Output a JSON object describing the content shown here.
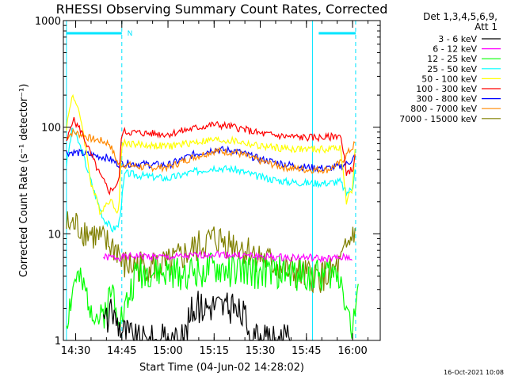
{
  "chart_data": {
    "type": "line",
    "title": "RHESSI Observing Summary Count Rates, Corrected",
    "xlabel": "Start Time (04-Jun-02 14:28:02)",
    "ylabel": "Corrected Count Rate (s⁻¹ detector⁻¹)",
    "yscale": "log",
    "ylim": [
      1,
      1000
    ],
    "xlim": [
      "14:26",
      "16:09"
    ],
    "x_ticks": [
      "14:30",
      "14:45",
      "15:00",
      "15:15",
      "15:30",
      "15:45",
      "16:00"
    ],
    "y_ticks": [
      "1",
      "10",
      "100",
      "1000"
    ],
    "legend_header": [
      "Det 1,3,4,5,6,9,",
      "Att 1"
    ],
    "legend_position": "right",
    "footer_date": "16-Oct-2021 10:08",
    "markers": {
      "night_bars": [
        [
          "14:27",
          "14:45"
        ],
        [
          "15:49",
          "16:01"
        ]
      ],
      "vertical_lines_solid": [
        "14:27",
        "15:47"
      ],
      "vertical_lines_dashed": [
        "14:45",
        "16:01"
      ],
      "saa_label": "N",
      "saa_label_time": "14:46"
    },
    "series": [
      {
        "name": "3 - 6 keV",
        "color": "#000000",
        "x": [
          "14:39",
          "14:42",
          "14:45",
          "14:50",
          "14:55",
          "14:58",
          "15:05",
          "15:08",
          "15:15",
          "15:20",
          "15:25",
          "15:28",
          "15:35",
          "15:40"
        ],
        "values": [
          1.5,
          1.8,
          1.3,
          1.0,
          1.0,
          1.0,
          1.0,
          2.0,
          2.2,
          2.0,
          1.7,
          1.0,
          1.0,
          1.0
        ]
      },
      {
        "name": "6 - 12 keV",
        "color": "#ff00ff",
        "x": [
          "14:39",
          "14:42",
          "14:45",
          "14:50",
          "15:00",
          "15:08",
          "15:15",
          "15:22",
          "15:28",
          "15:35",
          "15:40",
          "15:45",
          "15:50",
          "15:55",
          "15:58",
          "16:00"
        ],
        "values": [
          6.0,
          6.0,
          6.0,
          6.2,
          6.0,
          6.2,
          6.5,
          6.3,
          6.2,
          6.0,
          6.0,
          6.0,
          5.8,
          5.9,
          6.0,
          6.0
        ]
      },
      {
        "name": "12 - 25 keV",
        "color": "#00ff00",
        "x": [
          "14:27",
          "14:30",
          "14:34",
          "14:38",
          "14:42",
          "14:45",
          "14:50",
          "14:58",
          "15:05",
          "15:12",
          "15:15",
          "15:20",
          "15:28",
          "15:35",
          "15:42",
          "15:48",
          "15:52",
          "15:56",
          "16:00",
          "16:02"
        ],
        "values": [
          1.5,
          4.0,
          2.5,
          1.5,
          3.0,
          1.6,
          4.5,
          4.2,
          4.3,
          4.5,
          4.6,
          4.5,
          4.4,
          4.3,
          4.2,
          4.0,
          4.2,
          4.1,
          1.2,
          3.5
        ]
      },
      {
        "name": "25 - 50 keV",
        "color": "#00ffff",
        "x": [
          "14:27",
          "14:29",
          "14:32",
          "14:36",
          "14:39",
          "14:42",
          "14:44",
          "14:46",
          "14:52",
          "15:00",
          "15:08",
          "15:15",
          "15:22",
          "15:30",
          "15:38",
          "15:45",
          "15:52",
          "15:56",
          "15:58",
          "16:00",
          "16:01"
        ],
        "values": [
          45,
          100,
          60,
          25,
          14,
          11,
          12,
          37,
          35,
          33,
          38,
          42,
          40,
          34,
          31,
          30,
          30,
          31,
          24,
          27,
          47
        ]
      },
      {
        "name": "50 - 100 keV",
        "color": "#ffff00",
        "x": [
          "14:27",
          "14:29",
          "14:32",
          "14:35",
          "14:38",
          "14:41",
          "14:44",
          "14:45",
          "14:52",
          "15:00",
          "15:08",
          "15:15",
          "15:22",
          "15:30",
          "15:38",
          "15:45",
          "15:52",
          "15:56",
          "15:58",
          "16:00",
          "16:01"
        ],
        "values": [
          100,
          210,
          110,
          30,
          16,
          21,
          16,
          72,
          68,
          66,
          72,
          76,
          74,
          66,
          63,
          62,
          62,
          66,
          20,
          26,
          85
        ]
      },
      {
        "name": "100 - 300 keV",
        "color": "#ff0000",
        "x": [
          "14:27",
          "14:29",
          "14:32",
          "14:35",
          "14:38",
          "14:41",
          "14:44",
          "14:45",
          "14:52",
          "15:00",
          "15:08",
          "15:15",
          "15:22",
          "15:30",
          "15:38",
          "15:45",
          "15:52",
          "15:56",
          "15:58",
          "16:00",
          "16:01"
        ],
        "values": [
          70,
          120,
          90,
          55,
          35,
          25,
          30,
          91,
          88,
          86,
          97,
          106,
          100,
          87,
          82,
          80,
          80,
          85,
          38,
          40,
          55
        ]
      },
      {
        "name": "300 - 800 keV",
        "color": "#0000ff",
        "x": [
          "14:27",
          "14:30",
          "14:35",
          "14:40",
          "14:44",
          "14:45",
          "14:52",
          "15:00",
          "15:08",
          "15:15",
          "15:22",
          "15:30",
          "15:38",
          "15:45",
          "15:52",
          "15:56",
          "15:58",
          "16:00",
          "16:01"
        ],
        "values": [
          58,
          58,
          55,
          52,
          45,
          46,
          45,
          44,
          55,
          62,
          60,
          50,
          45,
          42,
          41,
          43,
          45,
          50,
          55
        ]
      },
      {
        "name": "800 - 7000 keV",
        "color": "#ff8800",
        "x": [
          "14:27",
          "14:29",
          "14:32",
          "14:35",
          "14:38",
          "14:41",
          "14:44",
          "14:45",
          "14:52",
          "15:00",
          "15:08",
          "15:15",
          "15:22",
          "15:30",
          "15:38",
          "15:45",
          "15:52",
          "15:56",
          "15:58",
          "16:00",
          "16:01"
        ],
        "values": [
          80,
          90,
          85,
          78,
          75,
          70,
          44,
          45,
          42,
          42,
          52,
          60,
          58,
          48,
          42,
          40,
          40,
          46,
          55,
          65,
          72
        ]
      },
      {
        "name": "7000 - 15000 keV",
        "color": "#808000",
        "x": [
          "14:27",
          "14:30",
          "14:35",
          "14:40",
          "14:44",
          "14:45",
          "14:50",
          "15:00",
          "15:08",
          "15:15",
          "15:22",
          "15:30",
          "15:38",
          "15:45",
          "15:52",
          "15:56",
          "15:58",
          "16:00",
          "16:01"
        ],
        "values": [
          12,
          12,
          10,
          8,
          7,
          5,
          5,
          5,
          7,
          9,
          8,
          6,
          4.5,
          4,
          4,
          5,
          7,
          10,
          12
        ]
      }
    ]
  }
}
